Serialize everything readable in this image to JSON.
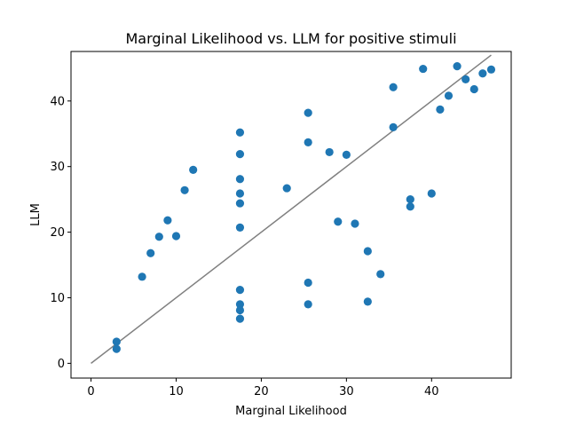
{
  "chart_data": {
    "type": "scatter",
    "title": "Marginal Likelihood vs. LLM for positive stimuli",
    "xlabel": "Marginal Likelihood",
    "ylabel": "LLM",
    "xlim": [
      -2.35,
      49.35
    ],
    "ylim": [
      -2.25,
      47.55
    ],
    "xticks": [
      0,
      10,
      20,
      30,
      40
    ],
    "yticks": [
      0,
      10,
      20,
      30,
      40
    ],
    "xtick_labels": [
      "0",
      "10",
      "20",
      "30",
      "40"
    ],
    "ytick_labels": [
      "0",
      "10",
      "20",
      "30",
      "40"
    ],
    "grid": false,
    "marker_color": "#1f77b4",
    "line_color": "#808080",
    "reference_line": {
      "x": [
        0,
        47
      ],
      "y": [
        0,
        47
      ]
    },
    "points": [
      {
        "x": 3,
        "y": 3.3
      },
      {
        "x": 3,
        "y": 2.2
      },
      {
        "x": 6,
        "y": 13.2
      },
      {
        "x": 7,
        "y": 16.8
      },
      {
        "x": 8,
        "y": 19.3
      },
      {
        "x": 9,
        "y": 21.8
      },
      {
        "x": 10,
        "y": 19.4
      },
      {
        "x": 11,
        "y": 26.4
      },
      {
        "x": 12,
        "y": 29.5
      },
      {
        "x": 17.5,
        "y": 35.2
      },
      {
        "x": 17.5,
        "y": 31.9
      },
      {
        "x": 17.5,
        "y": 28.1
      },
      {
        "x": 17.5,
        "y": 25.9
      },
      {
        "x": 17.5,
        "y": 24.4
      },
      {
        "x": 17.5,
        "y": 20.7
      },
      {
        "x": 17.5,
        "y": 11.2
      },
      {
        "x": 17.5,
        "y": 9.0
      },
      {
        "x": 17.5,
        "y": 8.1
      },
      {
        "x": 17.5,
        "y": 6.8
      },
      {
        "x": 23,
        "y": 26.7
      },
      {
        "x": 25.5,
        "y": 38.2
      },
      {
        "x": 25.5,
        "y": 33.7
      },
      {
        "x": 25.5,
        "y": 12.3
      },
      {
        "x": 25.5,
        "y": 9.0
      },
      {
        "x": 28,
        "y": 32.2
      },
      {
        "x": 29,
        "y": 21.6
      },
      {
        "x": 30,
        "y": 31.8
      },
      {
        "x": 31,
        "y": 21.3
      },
      {
        "x": 32.5,
        "y": 17.1
      },
      {
        "x": 32.5,
        "y": 9.4
      },
      {
        "x": 34,
        "y": 13.6
      },
      {
        "x": 35.5,
        "y": 42.1
      },
      {
        "x": 35.5,
        "y": 36.0
      },
      {
        "x": 37.5,
        "y": 25.0
      },
      {
        "x": 37.5,
        "y": 23.9
      },
      {
        "x": 39,
        "y": 44.9
      },
      {
        "x": 40,
        "y": 25.9
      },
      {
        "x": 41,
        "y": 38.7
      },
      {
        "x": 42,
        "y": 40.8
      },
      {
        "x": 43,
        "y": 45.3
      },
      {
        "x": 44,
        "y": 43.3
      },
      {
        "x": 45,
        "y": 41.8
      },
      {
        "x": 46,
        "y": 44.2
      },
      {
        "x": 47,
        "y": 44.8
      }
    ]
  }
}
